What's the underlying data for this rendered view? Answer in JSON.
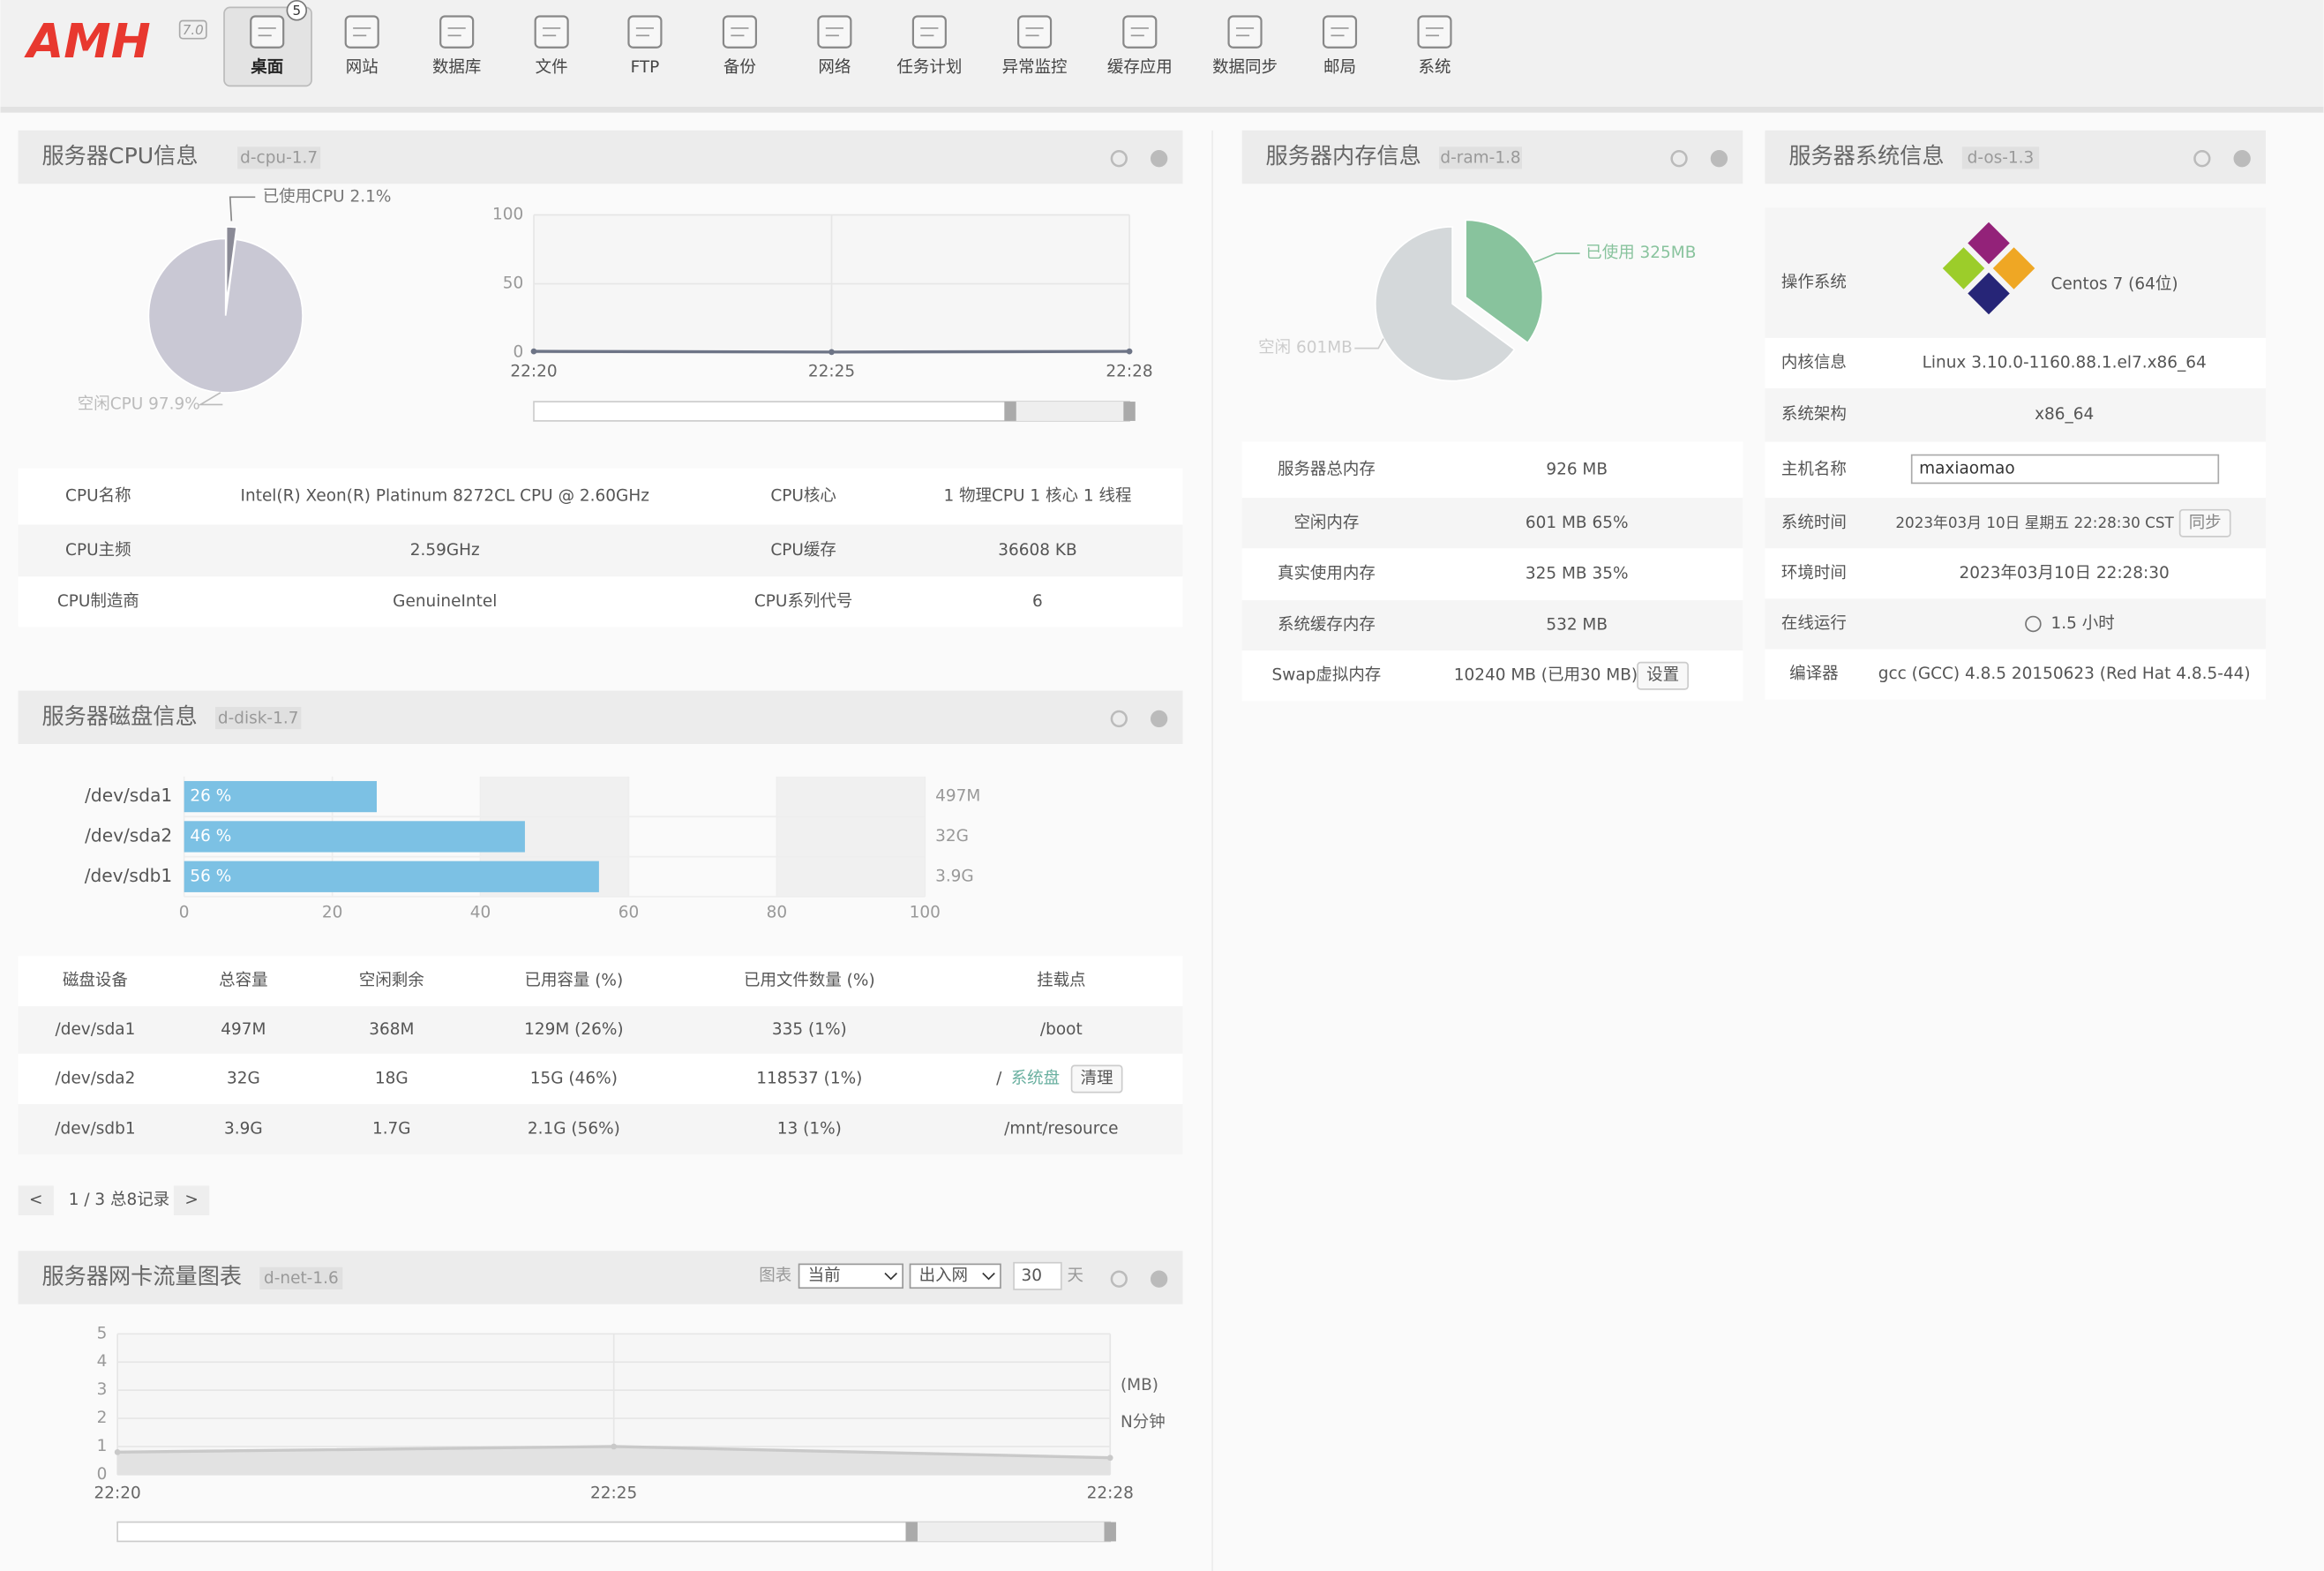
{
  "nav": {
    "logo": "AMH",
    "version": "7.0",
    "badge": "5",
    "items": [
      "桌面",
      "网站",
      "数据库",
      "文件",
      "FTP",
      "备份",
      "网络",
      "任务计划",
      "异常监控",
      "缓存应用",
      "数据同步",
      "邮局",
      "系统"
    ]
  },
  "cpu": {
    "title": "服务器CPU信息",
    "tag": "d-cpu-1.7",
    "pie": {
      "values": [
        2.1,
        97.9
      ],
      "labels": [
        "已使用CPU 2.1%",
        "空闲CPU 97.9%"
      ],
      "colors": [
        "#8a8a96",
        "#c9c8d4"
      ]
    },
    "line": {
      "x": [
        "22:20",
        "22:25",
        "22:28"
      ],
      "values": [
        1,
        0.5,
        1
      ],
      "ylim": [
        0,
        100
      ],
      "yticks": [
        0,
        50,
        100
      ],
      "color": "#6d7486"
    },
    "rows": [
      [
        "CPU名称",
        "Intel(R) Xeon(R) Platinum 8272CL CPU @ 2.60GHz",
        "CPU核心",
        "1 物理CPU   1 核心   1 线程"
      ],
      [
        "CPU主频",
        "2.59GHz",
        "CPU缓存",
        "36608 KB"
      ],
      [
        "CPU制造商",
        "GenuineIntel",
        "CPU系列代号",
        "6"
      ]
    ]
  },
  "disk": {
    "title": "服务器磁盘信息",
    "tag": "d-disk-1.7",
    "bars": {
      "categories": [
        "/dev/sda1",
        "/dev/sda2",
        "/dev/sdb1"
      ],
      "values": [
        26,
        46,
        56
      ],
      "value_labels": [
        "26 %",
        "46 %",
        "56 %"
      ],
      "sizes": [
        "497M",
        "32G",
        "3.9G"
      ],
      "xlim": [
        0,
        100
      ],
      "xticks": [
        0,
        20,
        40,
        60,
        80,
        100
      ],
      "color": "#7cc1e4"
    },
    "table": {
      "headers": [
        "磁盘设备",
        "总容量",
        "空闲剩余",
        "已用容量 (%)",
        "已用文件数量 (%)",
        "挂载点"
      ],
      "rows": [
        [
          "/dev/sda1",
          "497M",
          "368M",
          "129M (26%)",
          "335 (1%)",
          "/boot"
        ],
        [
          "/dev/sda2",
          "32G",
          "18G",
          "15G (46%)",
          "118537 (1%)",
          "/"
        ],
        [
          "/dev/sdb1",
          "3.9G",
          "1.7G",
          "2.1G (56%)",
          "13 (1%)",
          "/mnt/resource"
        ]
      ],
      "mount_link": "系统盘",
      "clean_button": "清理"
    },
    "pager": {
      "prev": "<",
      "info": "1 / 3 总8记录",
      "next": ">"
    }
  },
  "net": {
    "title": "服务器网卡流量图表",
    "tag": "d-net-1.6",
    "controls": {
      "label": "图表",
      "range": "当前",
      "direction": "出入网",
      "days": "30",
      "days_unit": "天"
    },
    "line": {
      "x": [
        "22:20",
        "22:25",
        "22:28"
      ],
      "values": [
        0.8,
        1,
        0.6
      ],
      "ylim": [
        0,
        5
      ],
      "yticks": [
        0,
        1,
        2,
        3,
        4,
        5
      ],
      "color": "#c9c9c9"
    },
    "unit": "(MB)",
    "interval": "N分钟"
  },
  "ram": {
    "title": "服务器内存信息",
    "tag": "d-ram-1.8",
    "pie": {
      "values": [
        325,
        601
      ],
      "labels": [
        "已使用 325MB",
        "空闲 601MB"
      ],
      "colors": [
        "#88c39d",
        "#d4d8da"
      ]
    },
    "rows": [
      [
        "服务器总内存",
        "926 MB"
      ],
      [
        "空闲内存",
        "601 MB   65%"
      ],
      [
        "真实使用内存",
        "325 MB   35%"
      ],
      [
        "系统缓存内存",
        "532 MB"
      ],
      [
        "Swap虚拟内存",
        "10240 MB (已用30 MB)"
      ]
    ],
    "swap_button": "设置"
  },
  "os": {
    "title": "服务器系统信息",
    "tag": "d-os-1.3",
    "rows": [
      [
        "操作系统",
        "Centos 7 (64位)"
      ],
      [
        "内核信息",
        "Linux 3.10.0-1160.88.1.el7.x86_64"
      ],
      [
        "系统架构",
        "x86_64"
      ],
      [
        "主机名称",
        "maxiaomao"
      ],
      [
        "系统时间",
        "2023年03月 10日 星期五 22:28:30 CST"
      ],
      [
        "环境时间",
        "2023年03月10日 22:28:30"
      ],
      [
        "在线运行",
        "1.5 小时"
      ],
      [
        "编译器",
        "gcc (GCC) 4.8.5 20150623 (Red Hat 4.8.5-44)"
      ]
    ],
    "sync_button": "同步"
  }
}
